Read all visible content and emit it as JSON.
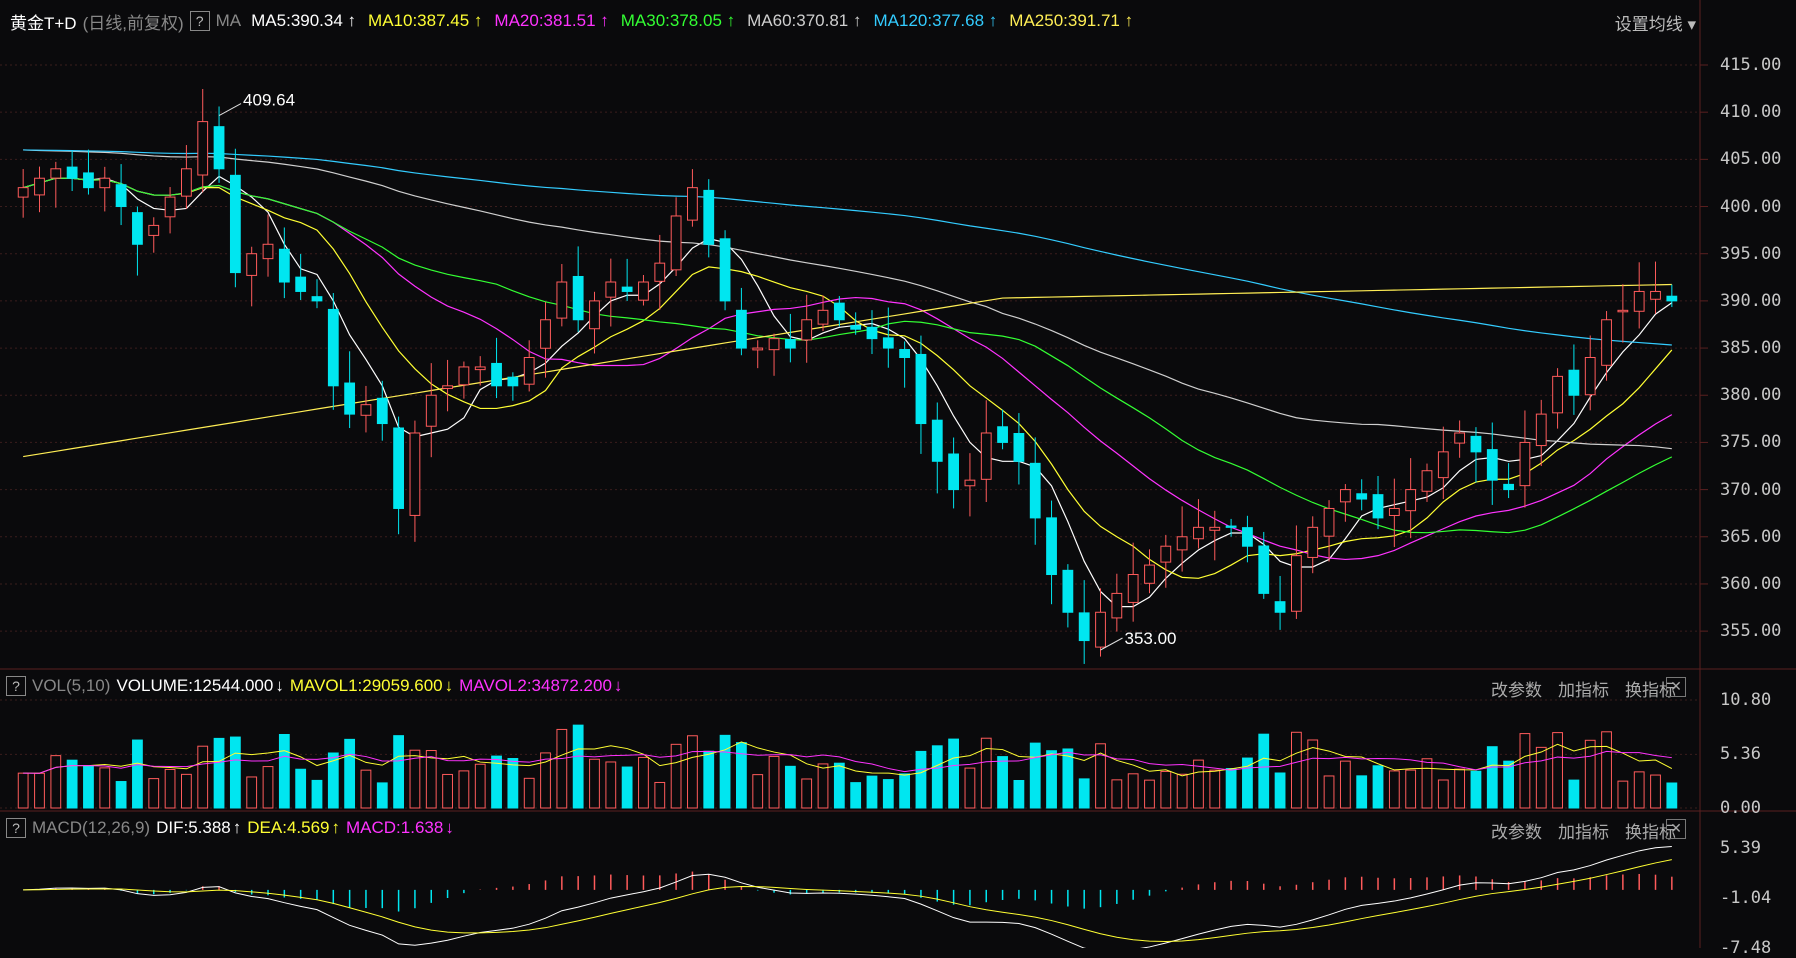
{
  "colors": {
    "up": "#ff5b5b",
    "down": "#00e6f0",
    "ma5": "#ffffff",
    "ma10": "#ffff33",
    "ma20": "#ff33ff",
    "ma30": "#33ff33",
    "ma60": "#cfcfcf",
    "ma120": "#33ccff",
    "ma250": "#ffee55",
    "grid": "#3a1d1d",
    "axis": "#5a2020"
  },
  "header": {
    "symbol": "黄金T+D",
    "period": "(日线,前复权)",
    "help": "?",
    "indicator": "MA",
    "ma": [
      {
        "label": "MA5:390.34",
        "arrow": "↑",
        "color": "#ffffff"
      },
      {
        "label": "MA10:387.45",
        "arrow": "↑",
        "color": "#ffff33"
      },
      {
        "label": "MA20:381.51",
        "arrow": "↑",
        "color": "#ff33ff"
      },
      {
        "label": "MA30:378.05",
        "arrow": "↑",
        "color": "#33ff33"
      },
      {
        "label": "MA60:370.81",
        "arrow": "↑",
        "color": "#cfcfcf"
      },
      {
        "label": "MA120:377.68",
        "arrow": "↑",
        "color": "#33ccff"
      },
      {
        "label": "MA250:391.71",
        "arrow": "↑",
        "color": "#ffee55"
      }
    ],
    "settings": "设置均线"
  },
  "vol_header": {
    "help": "?",
    "name": "VOL(5,10)",
    "volume": "VOLUME:12544.000",
    "volume_arrow": "↓",
    "mavol1": "MAVOL1:29059.600",
    "mavol1_arrow": "↓",
    "mavol2": "MAVOL2:34872.200",
    "mavol2_arrow": "↓"
  },
  "macd_header": {
    "help": "?",
    "name": "MACD(12,26,9)",
    "dif": "DIF:5.388",
    "dif_arrow": "↑",
    "dea": "DEA:4.569",
    "dea_arrow": "↑",
    "macd": "MACD:1.638",
    "macd_arrow": "↓"
  },
  "tools": {
    "params": "改参数",
    "add": "加指标",
    "switch": "换指标",
    "close": "✕"
  },
  "chart_data": {
    "type": "candlestick",
    "price_ticks": [
      "415.00",
      "410.00",
      "405.00",
      "400.00",
      "395.00",
      "390.00",
      "385.00",
      "380.00",
      "375.00",
      "370.00",
      "365.00",
      "360.00",
      "355.00"
    ],
    "price_range": [
      353,
      415
    ],
    "annotations": [
      {
        "text": "409.64",
        "value": 409.64
      },
      {
        "text": "353.00",
        "value": 353.0
      }
    ],
    "volume_ticks": [
      "10.80",
      "5.36",
      "0.00"
    ],
    "volume_range": [
      0,
      10.8
    ],
    "macd_ticks": [
      "5.39",
      "-1.04",
      "-7.48"
    ],
    "macd_range": [
      -7.48,
      5.39
    ],
    "closes": [
      402,
      403,
      404,
      403,
      402,
      403,
      400,
      396,
      398,
      401,
      404,
      409,
      404,
      393,
      395,
      396,
      392,
      391,
      390,
      381,
      378,
      379,
      377,
      368,
      376,
      380,
      381,
      383,
      383,
      381,
      381,
      384,
      388,
      392,
      388,
      390,
      392,
      391,
      392,
      394,
      399,
      402,
      396,
      390,
      385,
      385,
      386,
      385,
      388,
      389,
      388,
      387,
      386,
      385,
      384,
      377,
      373,
      370,
      371,
      376,
      375,
      373,
      367,
      361,
      357,
      354,
      357,
      359,
      361,
      362,
      364,
      365,
      366,
      366,
      366,
      364,
      359,
      357,
      363,
      366,
      368,
      370,
      369,
      367,
      368,
      370,
      372,
      374,
      376,
      374,
      371,
      370,
      375,
      378,
      382,
      380,
      384,
      388,
      389,
      391,
      391,
      390
    ]
  }
}
